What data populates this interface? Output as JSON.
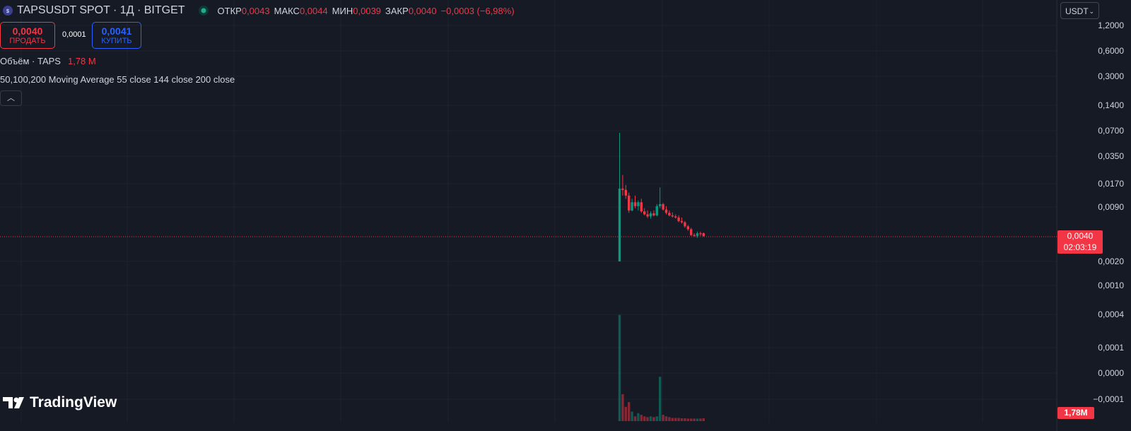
{
  "header": {
    "symbol": "TAPSUSDT SPOT · 1Д · BITGET",
    "ohlc": [
      {
        "label": "ОТКР",
        "value": "0,0043"
      },
      {
        "label": "МАКС",
        "value": "0,0044"
      },
      {
        "label": "МИН",
        "value": "0,0039"
      },
      {
        "label": "ЗАКР",
        "value": "0,0040"
      }
    ],
    "change": "−0,0003 (−6,98%)",
    "currency": "USDT"
  },
  "trade": {
    "sell_price": "0,0040",
    "sell_label": "ПРОДАТЬ",
    "spread": "0,0001",
    "buy_price": "0,0041",
    "buy_label": "КУПИТЬ"
  },
  "indicators": {
    "volume_name": "Объём · TAPS",
    "volume_value": "1,78 M",
    "ma_name": "50,100,200 Moving Average 55 close 144 close 200 close"
  },
  "price_axis": {
    "labels": [
      "1,2000",
      "0,6000",
      "0,3000",
      "0,1400",
      "0,0700",
      "0,0350",
      "0,0170",
      "0,0090",
      "0,0020",
      "0,0010",
      "0,0004",
      "0,0001",
      "0,0000",
      "−0,0001"
    ],
    "current_price": "0,0040",
    "countdown": "02:03:19",
    "volume_badge": "1,78M"
  },
  "chart_data": {
    "type": "candlestick",
    "log_scale": true,
    "ylim": [
      2.5e-05,
      2.45
    ],
    "up_color": "#089981",
    "down_color": "#f23645",
    "open": [
      0.002,
      0.0145,
      0.014,
      0.012,
      0.008,
      0.01,
      0.009,
      0.01,
      0.0078,
      0.0072,
      0.0068,
      0.0074,
      0.007,
      0.009,
      0.0095,
      0.0082,
      0.0075,
      0.007,
      0.0068,
      0.0066,
      0.006,
      0.0058,
      0.0052,
      0.0048,
      0.0041,
      0.004,
      0.0043,
      0.0043
    ],
    "high": [
      0.066,
      0.021,
      0.016,
      0.013,
      0.011,
      0.012,
      0.0105,
      0.011,
      0.0085,
      0.008,
      0.0078,
      0.008,
      0.0095,
      0.015,
      0.0098,
      0.009,
      0.008,
      0.0076,
      0.0072,
      0.007,
      0.0066,
      0.006,
      0.0054,
      0.005,
      0.0043,
      0.0045,
      0.0045,
      0.0044
    ],
    "low": [
      0.002,
      0.012,
      0.011,
      0.0075,
      0.0078,
      0.0085,
      0.008,
      0.0075,
      0.007,
      0.0065,
      0.0064,
      0.0068,
      0.0068,
      0.0085,
      0.008,
      0.0072,
      0.0068,
      0.0066,
      0.0064,
      0.0058,
      0.0056,
      0.005,
      0.0046,
      0.004,
      0.0039,
      0.0038,
      0.004,
      0.0039
    ],
    "close": [
      0.0145,
      0.014,
      0.012,
      0.008,
      0.01,
      0.009,
      0.01,
      0.0078,
      0.0072,
      0.0068,
      0.0074,
      0.007,
      0.009,
      0.0095,
      0.0082,
      0.0075,
      0.007,
      0.0068,
      0.0066,
      0.006,
      0.0058,
      0.0052,
      0.0048,
      0.0041,
      0.004,
      0.0043,
      0.0042,
      0.004
    ],
    "volume": [
      67,
      17,
      9,
      12,
      6,
      3,
      5,
      4,
      3,
      2.5,
      3,
      2.5,
      3,
      28,
      4,
      3,
      2.5,
      2,
      2,
      2,
      1.8,
      1.8,
      1.6,
      1.6,
      1.6,
      1.6,
      1.6,
      1.78
    ],
    "y2lim": [
      0,
      70
    ]
  }
}
